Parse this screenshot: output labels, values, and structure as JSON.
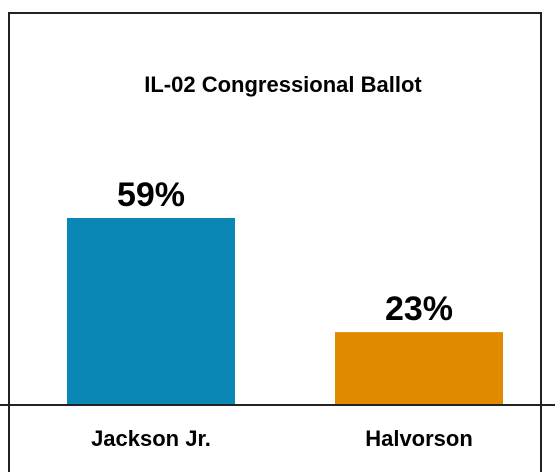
{
  "chart_data": {
    "type": "bar",
    "title": "IL-02 Congressional Ballot",
    "categories": [
      "Jackson Jr.",
      "Halvorson"
    ],
    "values": [
      59,
      23
    ],
    "value_labels": [
      "59%",
      "23%"
    ],
    "colors": [
      "#0a87b4",
      "#e08a00"
    ],
    "ylim": [
      0,
      100
    ],
    "grid": false,
    "legend": "none"
  }
}
